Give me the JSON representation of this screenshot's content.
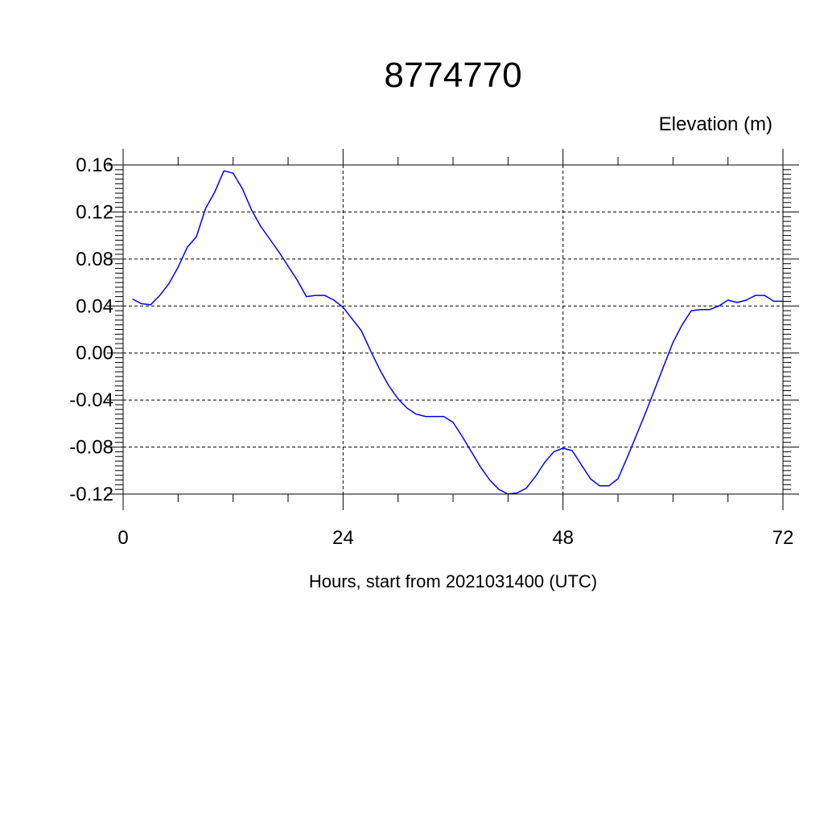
{
  "chart_data": {
    "type": "line",
    "title": "8774770",
    "units_label": "Elevation (m)",
    "xlabel": "Hours, start from 2021031400 (UTC)",
    "ylabel": "",
    "xlim": [
      0,
      72
    ],
    "ylim": [
      -0.12,
      0.16
    ],
    "x_ticks": [
      0,
      24,
      48,
      72
    ],
    "x_tick_labels": [
      "0",
      "24",
      "48",
      "72"
    ],
    "y_ticks": [
      -0.12,
      -0.08,
      -0.04,
      0.0,
      0.04,
      0.08,
      0.12,
      0.16
    ],
    "y_tick_labels": [
      "-0.12",
      "-0.08",
      "-0.04",
      "0.00",
      "0.04",
      "0.08",
      "0.12",
      "0.16"
    ],
    "grid": true,
    "series": [
      {
        "color": "#0000ff",
        "x": [
          1,
          2,
          3,
          4,
          5,
          6,
          7,
          8,
          9,
          10,
          11,
          12,
          13,
          14,
          15,
          16,
          17,
          18,
          19,
          20,
          21,
          22,
          23,
          24,
          25,
          26,
          27,
          28,
          29,
          30,
          31,
          32,
          33,
          34,
          35,
          36,
          37,
          38,
          39,
          40,
          41,
          42,
          43,
          44,
          45,
          46,
          47,
          48,
          49,
          50,
          51,
          52,
          53,
          54,
          55,
          56,
          57,
          58,
          59,
          60,
          61,
          62,
          63,
          64,
          65,
          66,
          67,
          68,
          69,
          70,
          71,
          72
        ],
        "y": [
          0.046,
          0.042,
          0.041,
          0.049,
          0.059,
          0.073,
          0.09,
          0.099,
          0.123,
          0.137,
          0.155,
          0.153,
          0.14,
          0.122,
          0.108,
          0.097,
          0.086,
          0.074,
          0.062,
          0.048,
          0.049,
          0.049,
          0.045,
          0.039,
          0.029,
          0.019,
          0.002,
          -0.014,
          -0.028,
          -0.039,
          -0.047,
          -0.052,
          -0.054,
          -0.054,
          -0.054,
          -0.059,
          -0.071,
          -0.084,
          -0.097,
          -0.108,
          -0.116,
          -0.12,
          -0.119,
          -0.115,
          -0.105,
          -0.093,
          -0.084,
          -0.081,
          -0.083,
          -0.095,
          -0.107,
          -0.113,
          -0.113,
          -0.107,
          -0.089,
          -0.07,
          -0.051,
          -0.031,
          -0.011,
          0.009,
          0.024,
          0.036,
          0.037,
          0.037,
          0.04,
          0.045,
          0.043,
          0.045,
          0.049,
          0.049,
          0.044,
          0.044
        ]
      }
    ]
  }
}
